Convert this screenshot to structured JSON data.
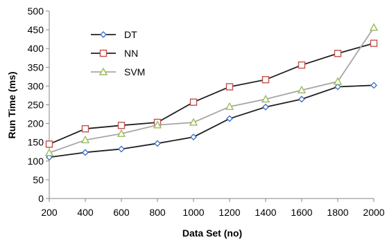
{
  "chart_data": {
    "type": "line",
    "title": "",
    "xlabel": "Data Set (no)",
    "ylabel": "Run Time (ms)",
    "x": [
      200,
      400,
      600,
      800,
      1000,
      1200,
      1400,
      1600,
      1800,
      2000
    ],
    "xlim": [
      200,
      2000
    ],
    "ylim": [
      0,
      500
    ],
    "yticks": [
      0,
      50,
      100,
      150,
      200,
      250,
      300,
      350,
      400,
      450,
      500
    ],
    "grid": false,
    "legend": "top-left",
    "series": [
      {
        "name": "DT",
        "color": "#1f1f1f",
        "marker_color": "#4472c4",
        "marker": "diamond",
        "values": [
          110,
          123,
          132,
          147,
          164,
          213,
          244,
          265,
          298,
          302
        ]
      },
      {
        "name": "NN",
        "color": "#1f1f1f",
        "marker_color": "#c0504d",
        "marker": "square",
        "values": [
          145,
          186,
          195,
          203,
          257,
          298,
          317,
          356,
          387,
          414
        ]
      },
      {
        "name": "SVM",
        "color": "#a6a6a6",
        "marker_color": "#9bbb59",
        "marker": "triangle",
        "values": [
          122,
          156,
          173,
          196,
          203,
          245,
          265,
          289,
          312,
          456
        ]
      }
    ]
  }
}
